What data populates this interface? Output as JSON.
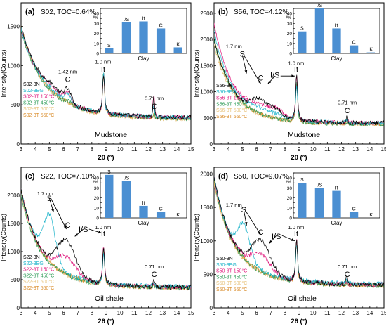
{
  "colors": {
    "3N": "#000000",
    "3EG": "#1bb3c9",
    "3T 150°C": "#e0197d",
    "3T 450°C": "#2e9c57",
    "3T 500°C": "#e7c27a",
    "3T 550°C": "#d98c2a",
    "bars": "#4b8fd2"
  },
  "chart_data": [
    {
      "type": "line",
      "panel_label": "(a)",
      "panel_title": "S02, TOC=0.64%",
      "lithology": "Mudstone",
      "xlabel": "2θ (°)",
      "ylabel": "Intensity(Counts)",
      "xlim": [
        3,
        15
      ],
      "ylim": [
        0,
        1800
      ],
      "xticks": [
        3,
        4,
        5,
        6,
        7,
        8,
        9,
        10,
        11,
        12,
        13,
        14,
        15
      ],
      "yticks": [
        0,
        500,
        1000,
        1500
      ],
      "series_names": [
        "S02-3N",
        "S02-3EG",
        "S02-3T 150°C",
        "S02-3T 450°C",
        "S02-3T 500°C",
        "S02-3T 550°C"
      ],
      "series_keys": [
        "3N",
        "3EG",
        "3T 150°C",
        "3T 450°C",
        "3T 500°C",
        "3T 550°C"
      ],
      "shape": {
        "base": [
          1500,
          1480,
          1480,
          1450,
          1480,
          1500
        ],
        "baseEnd": [
          330,
          330,
          330,
          320,
          310,
          320
        ],
        "k": 0.75,
        "k2": 0.35,
        "hump": [
          {
            "c": 6.3,
            "w": 0.35,
            "a": [
              150,
              90,
              110,
              30,
              20,
              20
            ]
          },
          {
            "c": 5.2,
            "w": 0.9,
            "a": [
              80,
              30,
              60,
              0,
              0,
              0
            ]
          }
        ],
        "it": [
          400,
          400,
          400,
          420,
          400,
          410
        ],
        "c2": [
          230,
          140,
          270,
          60,
          40,
          40
        ],
        "noise": 28
      },
      "annotations": [
        {
          "label": "1.42 nm",
          "x": 6.3
        },
        {
          "label": "C",
          "x": 6.3
        },
        {
          "label": "1.0 nm",
          "x": 8.8
        },
        {
          "label": "It",
          "x": 8.8
        },
        {
          "label": "0.71 nm",
          "x": 12.4
        },
        {
          "label": "C",
          "x": 12.4
        }
      ],
      "arrows": [],
      "inset": {
        "type": "bar",
        "ylabel": "/%",
        "xlabel": "Clay",
        "ylim": [
          0,
          45
        ],
        "yticks": [
          0,
          5,
          10,
          15,
          20,
          25,
          30,
          35,
          40,
          45
        ],
        "yticklabels": [
          "0",
          "",
          "10",
          "",
          "20",
          "",
          "30",
          "",
          "40",
          ""
        ],
        "categories": [
          "S",
          "I/S",
          "It",
          "C",
          "K"
        ],
        "values": [
          5,
          31,
          32,
          25,
          6
        ]
      }
    },
    {
      "type": "line",
      "panel_label": "(b)",
      "panel_title": "S56, TOC=4.12%",
      "lithology": "Mudstone",
      "xlabel": "2θ (°)",
      "ylabel": "Intensity(Counts)",
      "xlim": [
        3,
        15
      ],
      "ylim": [
        0,
        2700
      ],
      "xticks": [
        3,
        4,
        5,
        6,
        7,
        8,
        9,
        10,
        11,
        12,
        13,
        14,
        15
      ],
      "yticks": [
        0,
        500,
        1000,
        1500,
        2000,
        2500
      ],
      "series_names": [
        "S56-3N",
        "S56-3EG",
        "S56-3T 150°C",
        "S56-3T 450°C",
        "S56-3T 500°C",
        "S56-3T 550°C"
      ],
      "series_keys": [
        "3N",
        "3EG",
        "3T 150°C",
        "3T 450°C",
        "3T 500°C",
        "3T 550°C"
      ],
      "shape": {
        "base": [
          2000,
          2150,
          2300,
          2000,
          1900,
          2000
        ],
        "baseEnd": [
          400,
          400,
          400,
          380,
          380,
          380
        ],
        "k": 0.9,
        "k2": 0.45,
        "hump": [
          {
            "c": 6.2,
            "w": 0.8,
            "a": [
              260,
              80,
              120,
              0,
              0,
              0
            ]
          },
          {
            "c": 7.4,
            "w": 0.7,
            "a": [
              150,
              60,
              160,
              0,
              0,
              0
            ]
          }
        ],
        "it": [
          700,
          550,
          650,
          600,
          560,
          600
        ],
        "c2": [
          120,
          60,
          60,
          30,
          30,
          30
        ],
        "noise": 40
      },
      "annotations": [
        {
          "label": "1.7 nm",
          "x": 4.6
        },
        {
          "label": "S",
          "x": 5.0
        },
        {
          "label": "C",
          "x": 6.3
        },
        {
          "label": "I/S",
          "x": 7.3
        },
        {
          "label": "1.0 nm",
          "x": 8.8
        },
        {
          "label": "It",
          "x": 8.8
        },
        {
          "label": "0.71 nm",
          "x": 12.4
        },
        {
          "label": "C",
          "x": 12.4
        }
      ],
      "arrows": [
        [
          5.0,
          1700,
          5.3,
          1350
        ],
        [
          5.1,
          1700,
          6.3,
          1150
        ],
        [
          7.3,
          1300,
          6.8,
          1150
        ],
        [
          7.7,
          1300,
          8.7,
          1300
        ]
      ],
      "inset": {
        "type": "bar",
        "ylabel": "/%",
        "xlabel": "Clay",
        "ylim": [
          0,
          45
        ],
        "yticks": [
          0,
          5,
          10,
          15,
          20,
          25,
          30,
          35,
          40,
          45
        ],
        "yticklabels": [
          "0",
          "",
          "10",
          "",
          "20",
          "",
          "30",
          "",
          "40",
          ""
        ],
        "categories": [
          "S",
          "I/S",
          "It",
          "C",
          "K"
        ],
        "values": [
          22,
          45,
          25,
          8,
          1
        ]
      }
    },
    {
      "type": "line",
      "panel_label": "(c)",
      "panel_title": "S22, TOC=7.10%",
      "lithology": "Oil shale",
      "xlabel": "2θ (°)",
      "ylabel": "Intensity(Counts)",
      "xlim": [
        3,
        15
      ],
      "ylim": [
        0,
        2500
      ],
      "xticks": [
        3,
        4,
        5,
        6,
        7,
        8,
        9,
        10,
        11,
        12,
        13,
        14,
        15
      ],
      "yticks": [
        0,
        500,
        1000,
        1500,
        2000
      ],
      "series_names": [
        "S22-3N",
        "S22-3EG",
        "S22-3T 150°C",
        "S22-3T 450°C",
        "S22-3T 500°C",
        "S22-3T 550°C"
      ],
      "series_keys": [
        "3N",
        "3EG",
        "3T 150°C",
        "3T 450°C",
        "3T 500°C",
        "3T 550°C"
      ],
      "shape": {
        "base": [
          2100,
          2100,
          2100,
          2000,
          2000,
          2100
        ],
        "baseEnd": [
          360,
          370,
          360,
          350,
          350,
          350
        ],
        "k": 0.9,
        "k2": 0.4,
        "hump": [
          {
            "c": 5.0,
            "w": 0.6,
            "a": [
              0,
              800,
              0,
              0,
              0,
              0
            ]
          },
          {
            "c": 6.2,
            "w": 0.9,
            "a": [
              600,
              0,
              300,
              0,
              0,
              0
            ]
          }
        ],
        "it": [
          480,
          420,
          520,
          520,
          500,
          500
        ],
        "c2": [
          120,
          60,
          60,
          30,
          30,
          30
        ],
        "noise": 40
      },
      "annotations": [
        {
          "label": "1.7 nm",
          "x": 4.9
        },
        {
          "label": "S",
          "x": 5.0
        },
        {
          "label": "C",
          "x": 6.3
        },
        {
          "label": "I/S",
          "x": 7.4
        },
        {
          "label": "1.0 nm",
          "x": 8.8
        },
        {
          "label": "It",
          "x": 8.8
        },
        {
          "label": "0.71 nm",
          "x": 12.4
        },
        {
          "label": "C",
          "x": 12.4
        }
      ],
      "arrows": [
        [
          5.0,
          1950,
          5.3,
          1700
        ],
        [
          5.1,
          1950,
          6.2,
          1400
        ],
        [
          7.4,
          1400,
          6.8,
          1270
        ],
        [
          7.8,
          1400,
          8.7,
          1330
        ]
      ],
      "inset": {
        "type": "bar",
        "ylabel": "/%",
        "xlabel": "Clay",
        "ylim": [
          0,
          45
        ],
        "yticks": [
          0,
          5,
          10,
          15,
          20,
          25,
          30,
          35,
          40,
          45
        ],
        "yticklabels": [
          "0",
          "",
          "10",
          "",
          "20",
          "",
          "30",
          "",
          "40",
          ""
        ],
        "categories": [
          "S",
          "I/S",
          "It",
          "C",
          "K"
        ],
        "values": [
          43,
          37,
          12,
          6,
          0
        ]
      }
    },
    {
      "type": "line",
      "panel_label": "(d)",
      "panel_title": "S50, TOC=9.07%",
      "lithology": "Oil shale",
      "xlabel": "2θ (°)",
      "ylabel": "Intensity(Counts)",
      "xlim": [
        3,
        15
      ],
      "ylim": [
        0,
        2100
      ],
      "xticks": [
        3,
        4,
        5,
        6,
        7,
        8,
        9,
        10,
        11,
        12,
        13,
        14,
        15
      ],
      "yticks": [
        0,
        500,
        1000,
        1500,
        2000
      ],
      "series_names": [
        "S50-3N",
        "S50-3EG",
        "S50-3T 150°C",
        "S50-3T 450°C",
        "S50-3T 500°C",
        "S50-3T 550°C"
      ],
      "series_keys": [
        "3N",
        "3EG",
        "3T 150°C",
        "3T 450°C",
        "3T 500°C",
        "3T 550°C"
      ],
      "shape": {
        "base": [
          1950,
          1950,
          1950,
          1900,
          1850,
          1900
        ],
        "baseEnd": [
          340,
          350,
          340,
          330,
          330,
          330
        ],
        "k": 0.9,
        "k2": 0.4,
        "hump": [
          {
            "c": 5.1,
            "w": 0.6,
            "a": [
              0,
              480,
              0,
              0,
              0,
              0
            ]
          },
          {
            "c": 6.3,
            "w": 0.9,
            "a": [
              450,
              0,
              250,
              0,
              0,
              0
            ]
          }
        ],
        "it": [
          500,
          430,
          480,
          480,
          460,
          470
        ],
        "c2": [
          120,
          60,
          60,
          30,
          30,
          30
        ],
        "noise": 35
      },
      "annotations": [
        {
          "label": "1.7 nm",
          "x": 4.6
        },
        {
          "label": "S",
          "x": 5.1
        },
        {
          "label": "C",
          "x": 6.3
        },
        {
          "label": "I/S",
          "x": 7.4
        },
        {
          "label": "1.0 nm",
          "x": 8.8
        },
        {
          "label": "It",
          "x": 8.8
        },
        {
          "label": "0.71 nm",
          "x": 12.4
        },
        {
          "label": "C",
          "x": 12.4
        }
      ],
      "arrows": [
        [
          5.1,
          1460,
          5.3,
          1230
        ],
        [
          5.2,
          1460,
          6.3,
          1090
        ],
        [
          7.4,
          1080,
          6.9,
          960
        ],
        [
          7.8,
          1080,
          8.7,
          1000
        ]
      ],
      "inset": {
        "type": "bar",
        "ylabel": "/%",
        "xlabel": "Clay",
        "ylim": [
          0,
          45
        ],
        "yticks": [
          0,
          5,
          10,
          15,
          20,
          25,
          30,
          35,
          40,
          45
        ],
        "yticklabels": [
          "0",
          "",
          "10",
          "",
          "20",
          "",
          "30",
          "",
          "40",
          ""
        ],
        "categories": [
          "S",
          "I/S",
          "It",
          "C",
          "K"
        ],
        "values": [
          35,
          30,
          27,
          6,
          0
        ]
      }
    }
  ]
}
